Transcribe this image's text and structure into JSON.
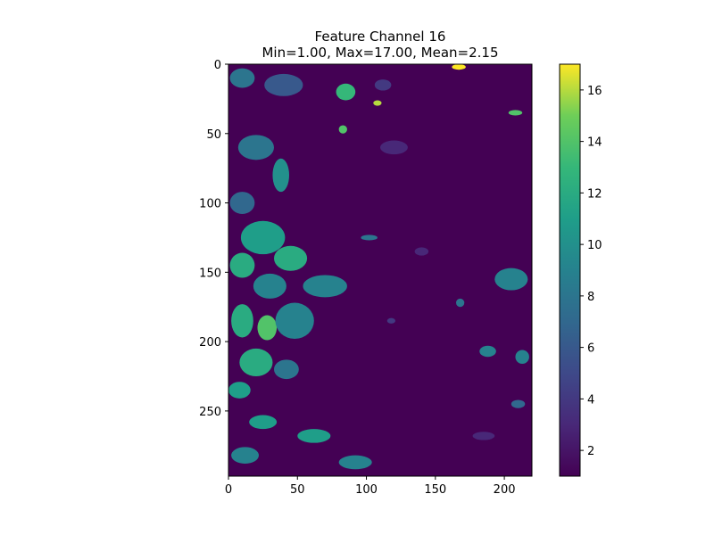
{
  "chart_data": {
    "type": "heatmap",
    "title_line1": "Feature Channel 16",
    "title_line2": "Min=1.00, Max=17.00, Mean=2.15",
    "xlabel": "",
    "ylabel": "",
    "xlim": [
      0,
      220
    ],
    "ylim": [
      297,
      0
    ],
    "x_ticks": [
      0,
      50,
      100,
      150,
      200
    ],
    "y_ticks": [
      0,
      50,
      100,
      150,
      200,
      250
    ],
    "colormap": "viridis",
    "colorbar_range": [
      1,
      17
    ],
    "colorbar_ticks": [
      2,
      4,
      6,
      8,
      10,
      12,
      14,
      16
    ],
    "background_value": 1,
    "grid": false,
    "patches": [
      {
        "x": 10,
        "y": 10,
        "rx": 9,
        "ry": 7,
        "v": 8
      },
      {
        "x": 40,
        "y": 15,
        "rx": 14,
        "ry": 8,
        "v": 6
      },
      {
        "x": 85,
        "y": 20,
        "rx": 7,
        "ry": 6,
        "v": 13
      },
      {
        "x": 108,
        "y": 28,
        "rx": 3,
        "ry": 2,
        "v": 16
      },
      {
        "x": 167,
        "y": 2,
        "rx": 5,
        "ry": 2,
        "v": 17
      },
      {
        "x": 208,
        "y": 35,
        "rx": 5,
        "ry": 2,
        "v": 14
      },
      {
        "x": 83,
        "y": 47,
        "rx": 3,
        "ry": 3,
        "v": 14
      },
      {
        "x": 20,
        "y": 60,
        "rx": 13,
        "ry": 9,
        "v": 8
      },
      {
        "x": 38,
        "y": 80,
        "rx": 6,
        "ry": 12,
        "v": 10
      },
      {
        "x": 10,
        "y": 100,
        "rx": 9,
        "ry": 8,
        "v": 7
      },
      {
        "x": 25,
        "y": 125,
        "rx": 16,
        "ry": 12,
        "v": 11
      },
      {
        "x": 45,
        "y": 140,
        "rx": 12,
        "ry": 9,
        "v": 12
      },
      {
        "x": 10,
        "y": 145,
        "rx": 9,
        "ry": 9,
        "v": 12
      },
      {
        "x": 70,
        "y": 160,
        "rx": 16,
        "ry": 8,
        "v": 9
      },
      {
        "x": 30,
        "y": 160,
        "rx": 12,
        "ry": 9,
        "v": 9
      },
      {
        "x": 10,
        "y": 185,
        "rx": 8,
        "ry": 12,
        "v": 12
      },
      {
        "x": 28,
        "y": 190,
        "rx": 7,
        "ry": 9,
        "v": 14
      },
      {
        "x": 48,
        "y": 185,
        "rx": 14,
        "ry": 13,
        "v": 9
      },
      {
        "x": 20,
        "y": 215,
        "rx": 12,
        "ry": 10,
        "v": 12
      },
      {
        "x": 42,
        "y": 220,
        "rx": 9,
        "ry": 7,
        "v": 8
      },
      {
        "x": 8,
        "y": 235,
        "rx": 8,
        "ry": 6,
        "v": 11
      },
      {
        "x": 25,
        "y": 258,
        "rx": 10,
        "ry": 5,
        "v": 11
      },
      {
        "x": 62,
        "y": 268,
        "rx": 12,
        "ry": 5,
        "v": 11
      },
      {
        "x": 92,
        "y": 287,
        "rx": 12,
        "ry": 5,
        "v": 9
      },
      {
        "x": 12,
        "y": 282,
        "rx": 10,
        "ry": 6,
        "v": 9
      },
      {
        "x": 102,
        "y": 125,
        "rx": 6,
        "ry": 2,
        "v": 8
      },
      {
        "x": 112,
        "y": 15,
        "rx": 6,
        "ry": 4,
        "v": 4
      },
      {
        "x": 205,
        "y": 155,
        "rx": 12,
        "ry": 8,
        "v": 9
      },
      {
        "x": 188,
        "y": 207,
        "rx": 6,
        "ry": 4,
        "v": 9
      },
      {
        "x": 213,
        "y": 211,
        "rx": 5,
        "ry": 5,
        "v": 9
      },
      {
        "x": 168,
        "y": 172,
        "rx": 3,
        "ry": 3,
        "v": 8
      },
      {
        "x": 210,
        "y": 245,
        "rx": 5,
        "ry": 3,
        "v": 7
      },
      {
        "x": 185,
        "y": 268,
        "rx": 8,
        "ry": 3,
        "v": 3
      },
      {
        "x": 140,
        "y": 135,
        "rx": 5,
        "ry": 3,
        "v": 3
      },
      {
        "x": 118,
        "y": 185,
        "rx": 3,
        "ry": 2,
        "v": 4
      },
      {
        "x": 120,
        "y": 60,
        "rx": 10,
        "ry": 5,
        "v": 3
      }
    ]
  }
}
